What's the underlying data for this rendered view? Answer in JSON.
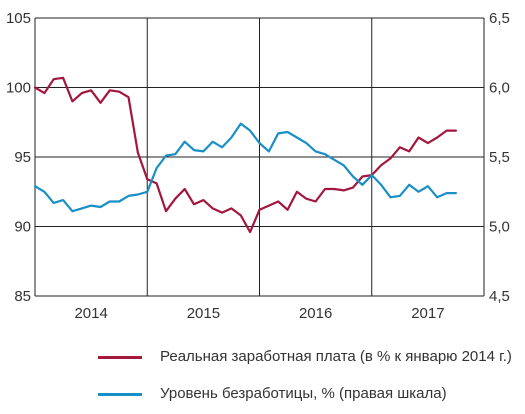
{
  "chart_data": {
    "type": "line",
    "x_range": [
      0,
      48
    ],
    "year_labels": [
      {
        "label": "2014",
        "x": 6
      },
      {
        "label": "2015",
        "x": 18
      },
      {
        "label": "2016",
        "x": 30
      },
      {
        "label": "2017",
        "x": 42
      }
    ],
    "year_boundaries": [
      12,
      24,
      36
    ],
    "y_left": {
      "ticks": [
        "85",
        "90",
        "95",
        "100",
        "105"
      ],
      "range": [
        85,
        105
      ]
    },
    "y_right": {
      "ticks": [
        "4,5",
        "5,0",
        "5,5",
        "6,0",
        "6,5"
      ],
      "range": [
        4.5,
        6.5
      ]
    },
    "grid": true,
    "legend_position": "bottom",
    "series": [
      {
        "name": "Реальная заработная плата (в % к январю 2014  г.)",
        "axis": "left",
        "color": "#a3173f",
        "x": [
          0,
          1,
          2,
          3,
          4,
          5,
          6,
          7,
          8,
          9,
          10,
          11,
          12,
          13,
          14,
          15,
          16,
          17,
          18,
          19,
          20,
          21,
          22,
          23,
          24,
          25,
          26,
          27,
          28,
          29,
          30,
          31,
          32,
          33,
          34,
          35,
          36,
          37,
          38,
          39,
          40,
          41,
          42,
          43,
          44,
          45
        ],
        "values": [
          100.0,
          99.6,
          100.6,
          100.7,
          99.0,
          99.6,
          99.8,
          98.9,
          99.8,
          99.7,
          99.3,
          95.3,
          93.4,
          93.1,
          91.1,
          92.0,
          92.7,
          91.6,
          91.9,
          91.3,
          91.0,
          91.3,
          90.8,
          89.6,
          91.2,
          91.5,
          91.8,
          91.2,
          92.5,
          92.0,
          91.8,
          92.7,
          92.7,
          92.6,
          92.8,
          93.6,
          93.7,
          94.4,
          94.9,
          95.7,
          95.4,
          96.4,
          96.0,
          96.4,
          96.9,
          96.9
        ]
      },
      {
        "name": "Уровень безработицы, % (правая шкала)",
        "axis": "right",
        "color": "#1a8fc5",
        "x": [
          0,
          1,
          2,
          3,
          4,
          5,
          6,
          7,
          8,
          9,
          10,
          11,
          12,
          13,
          14,
          15,
          16,
          17,
          18,
          19,
          20,
          21,
          22,
          23,
          24,
          25,
          26,
          27,
          28,
          29,
          30,
          31,
          32,
          33,
          34,
          35,
          36,
          37,
          38,
          39,
          40,
          41,
          42,
          43,
          44,
          45
        ],
        "values": [
          5.29,
          5.25,
          5.17,
          5.19,
          5.11,
          5.13,
          5.15,
          5.14,
          5.18,
          5.18,
          5.22,
          5.23,
          5.25,
          5.42,
          5.51,
          5.52,
          5.61,
          5.55,
          5.54,
          5.61,
          5.57,
          5.64,
          5.74,
          5.69,
          5.6,
          5.54,
          5.67,
          5.68,
          5.64,
          5.6,
          5.54,
          5.52,
          5.48,
          5.44,
          5.36,
          5.3,
          5.37,
          5.3,
          5.21,
          5.22,
          5.3,
          5.25,
          5.29,
          5.21,
          5.24,
          5.24
        ]
      }
    ]
  },
  "legend": {
    "items": [
      {
        "label": "Реальная заработная плата (в % к январю 2014  г.)",
        "color": "#a3173f"
      },
      {
        "label": "Уровень безработицы, % (правая шкала)",
        "color": "#1a8fc5"
      }
    ]
  }
}
